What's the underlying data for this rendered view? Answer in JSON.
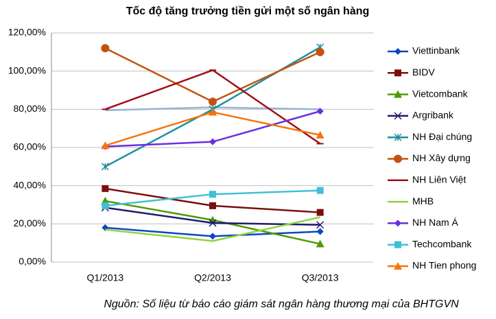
{
  "chart_data": {
    "type": "line",
    "title": "Tốc độ tăng trưởng tiền gửi một số ngân hàng",
    "source": "Nguồn: Số liệu từ báo cáo giám sát ngân hàng thương mại của BHTGVN",
    "categories": [
      "Q1/2013",
      "Q2/2013",
      "Q3/2013"
    ],
    "ylim": [
      0,
      120
    ],
    "yticks": [
      {
        "value": 0,
        "label": "0,00%"
      },
      {
        "value": 20,
        "label": "20,00%"
      },
      {
        "value": 40,
        "label": "40,00%"
      },
      {
        "value": 60,
        "label": "60,00%"
      },
      {
        "value": 80,
        "label": "80,00%"
      },
      {
        "value": 100,
        "label": "100,00%"
      },
      {
        "value": 120,
        "label": "120,00%"
      }
    ],
    "grid": true,
    "legend": "right",
    "series": [
      {
        "color": "#95b3d7",
        "marker": "none",
        "values": [
          79.5,
          81,
          80
        ]
      },
      {
        "name": "Viettinbank",
        "color": "#0a47c2",
        "marker": "diamond",
        "values": [
          18,
          13.5,
          16
        ]
      },
      {
        "name": "BIDV",
        "color": "#7b0f0f",
        "marker": "square",
        "values": [
          38.5,
          29.5,
          26
        ]
      },
      {
        "name": "Vietcombank",
        "color": "#4e9a06",
        "marker": "triangle",
        "values": [
          32,
          22,
          9.5
        ]
      },
      {
        "name": "Argribank",
        "color": "#1f1a6e",
        "marker": "x",
        "values": [
          28.5,
          20.5,
          19.5
        ]
      },
      {
        "name": "NH Đại chúng",
        "color": "#1f8e9e",
        "marker": "asterisk",
        "values": [
          50,
          80,
          112.5
        ]
      },
      {
        "name": "NH Xây dựng",
        "color": "#c2530f",
        "marker": "circle",
        "values": [
          112,
          84,
          110
        ]
      },
      {
        "name": "NH Liên Việt",
        "color": "#a10f1a",
        "marker": "dash",
        "values": [
          80,
          100.5,
          62
        ]
      },
      {
        "name": "MHB",
        "color": "#8fd43a",
        "marker": "none",
        "values": [
          17,
          11,
          23.5
        ]
      },
      {
        "name": "NH Nam Á",
        "color": "#6a2ee0",
        "marker": "diamond",
        "values": [
          60.5,
          63,
          79
        ]
      },
      {
        "name": "Techcombank",
        "color": "#3fc0d4",
        "marker": "square",
        "values": [
          29.5,
          35.5,
          37.5
        ]
      },
      {
        "name": "NH Tien phong",
        "color": "#f5750f",
        "marker": "triangle",
        "values": [
          61,
          78.5,
          66.5
        ]
      }
    ]
  }
}
